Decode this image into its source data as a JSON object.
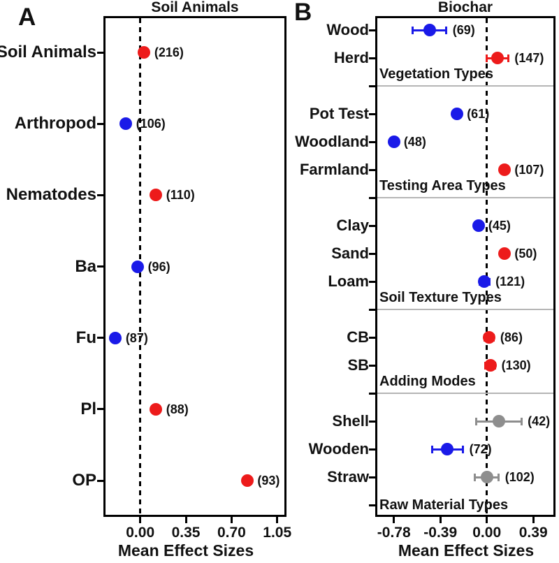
{
  "figure": {
    "background": "#ffffff",
    "palette": {
      "red": "#ED1B1B",
      "blue": "#1A1AE8",
      "gray": "#8E8E8E"
    },
    "divider_color": "#b5b5b5",
    "axis_color": "#000000"
  },
  "chart_data": [
    {
      "panel": "A",
      "type": "scatter",
      "subtype": "forest-plot",
      "title": "Soil Animals",
      "xlabel": "Mean Effect Sizes",
      "xlim": [
        -0.28,
        1.12
      ],
      "xticks": [
        0,
        0.35,
        0.7,
        1.05
      ],
      "xtick_labels": [
        "0.00",
        "0.35",
        "0.70",
        "1.05"
      ],
      "zero_line": {
        "x": 0,
        "style": "dashed"
      },
      "grid": false,
      "points": [
        {
          "label": "Soil Animals",
          "value": 0.03,
          "err": 0.03,
          "count": 216,
          "count_label": "(216)",
          "color": "red"
        },
        {
          "label": "Arthropod",
          "value": -0.11,
          "err": 0.03,
          "count": 106,
          "count_label": "(106)",
          "color": "blue"
        },
        {
          "label": "Nematodes",
          "value": 0.12,
          "err": 0.03,
          "count": 110,
          "count_label": "(110)",
          "color": "red"
        },
        {
          "label": "Ba",
          "value": -0.02,
          "err": 0.03,
          "count": 96,
          "count_label": "(96)",
          "color": "blue"
        },
        {
          "label": "Fu",
          "value": -0.19,
          "err": 0.03,
          "count": 87,
          "count_label": "(87)",
          "color": "blue"
        },
        {
          "label": "Pl",
          "value": 0.12,
          "err": 0.03,
          "count": 88,
          "count_label": "(88)",
          "color": "red"
        },
        {
          "label": "OP",
          "value": 0.82,
          "err": 0.03,
          "count": 93,
          "count_label": "(93)",
          "color": "red"
        }
      ]
    },
    {
      "panel": "B",
      "type": "scatter",
      "subtype": "forest-plot-grouped",
      "title": "Biochar",
      "xlabel": "Mean Effect Sizes",
      "xlim": [
        -0.94,
        0.58
      ],
      "xticks": [
        -0.78,
        -0.39,
        0,
        0.39
      ],
      "xtick_labels": [
        "-0.78",
        "-0.39",
        "0.00",
        "0.39"
      ],
      "zero_line": {
        "x": 0,
        "style": "dashed"
      },
      "grid": false,
      "groups": [
        {
          "name": "Vegetation Types",
          "items": [
            {
              "label": "Wood",
              "value": -0.48,
              "err": 0.14,
              "count": 69,
              "count_label": "(69)",
              "color": "blue"
            },
            {
              "label": "Herd",
              "value": 0.09,
              "err": 0.09,
              "count": 147,
              "count_label": "(147)",
              "color": "red"
            }
          ]
        },
        {
          "name": "Testing Area Types",
          "items": [
            {
              "label": "Pot Test",
              "value": -0.25,
              "err": 0.03,
              "count": 61,
              "count_label": "(61)",
              "color": "blue"
            },
            {
              "label": "Woodland",
              "value": -0.78,
              "err": 0.03,
              "count": 48,
              "count_label": "(48)",
              "color": "blue"
            },
            {
              "label": "Farmland",
              "value": 0.15,
              "err": 0.03,
              "count": 107,
              "count_label": "(107)",
              "color": "red"
            }
          ]
        },
        {
          "name": "Soil Texture Types",
          "items": [
            {
              "label": "Clay",
              "value": -0.07,
              "err": 0.03,
              "count": 45,
              "count_label": "(45)",
              "color": "blue"
            },
            {
              "label": "Sand",
              "value": 0.15,
              "err": 0.03,
              "count": 50,
              "count_label": "(50)",
              "color": "red"
            },
            {
              "label": "Loam",
              "value": -0.02,
              "err": 0.04,
              "count": 121,
              "count_label": "(121)",
              "color": "blue"
            }
          ]
        },
        {
          "name": "Adding Modes",
          "items": [
            {
              "label": "CB",
              "value": 0.02,
              "err": 0.04,
              "count": 86,
              "count_label": "(86)",
              "color": "red"
            },
            {
              "label": "SB",
              "value": 0.03,
              "err": 0.04,
              "count": 130,
              "count_label": "(130)",
              "color": "red"
            }
          ]
        },
        {
          "name": "Raw Material Types",
          "items": [
            {
              "label": "Shell",
              "value": 0.1,
              "err": 0.19,
              "count": 42,
              "count_label": "(42)",
              "color": "gray"
            },
            {
              "label": "Wooden",
              "value": -0.33,
              "err": 0.13,
              "count": 72,
              "count_label": "(72)",
              "color": "blue"
            },
            {
              "label": "Straw",
              "value": 0.0,
              "err": 0.1,
              "count": 102,
              "count_label": "(102)",
              "color": "gray"
            }
          ]
        }
      ]
    }
  ]
}
